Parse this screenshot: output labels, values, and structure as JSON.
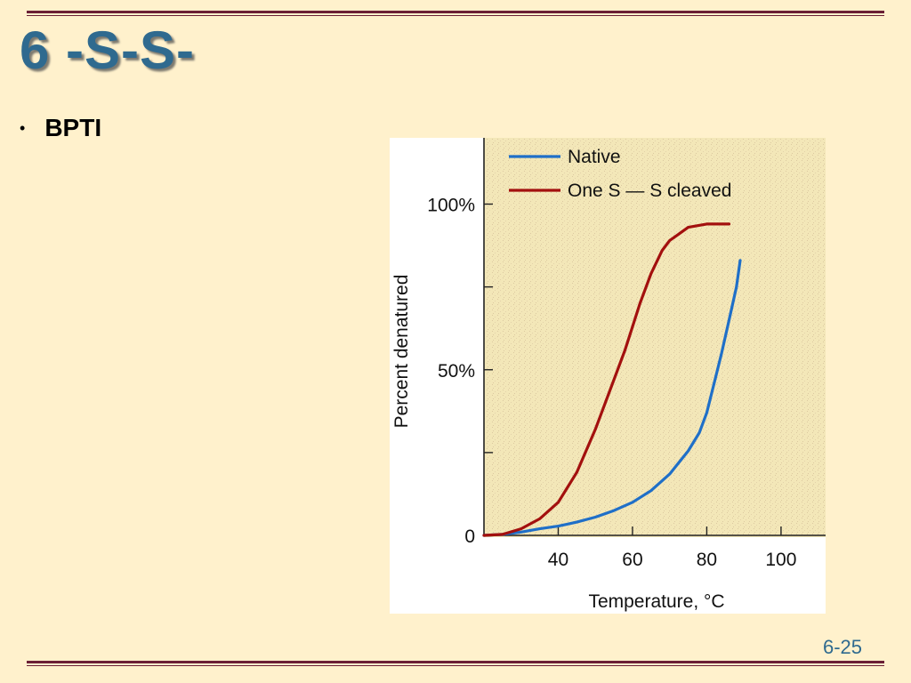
{
  "slide": {
    "title": "6 -S-S-",
    "bullet": "BPTI",
    "bullet_marker": "•",
    "page_number": "6-25"
  },
  "colors": {
    "background": "#FFF1CC",
    "rule": "#6B1F35",
    "title": "#2F6A8F",
    "plot_background": "#F3E7B8"
  },
  "chart_data": {
    "type": "line",
    "xlabel": "Temperature, °C",
    "ylabel": "Percent denatured",
    "xlim": [
      20,
      112
    ],
    "ylim": [
      0,
      120
    ],
    "x_ticks": [
      40,
      60,
      80,
      100
    ],
    "x_tick_labels": [
      "40",
      "60",
      "80",
      "100"
    ],
    "y_ticks": [
      0,
      25,
      50,
      75,
      100
    ],
    "y_tick_labels": [
      "0",
      "",
      "50%",
      "",
      "100%"
    ],
    "grid": false,
    "legend_position": "top-left",
    "series": [
      {
        "name": "Native",
        "color": "#1F6FC8",
        "x": [
          20,
          25,
          30,
          35,
          40,
          45,
          50,
          55,
          60,
          65,
          70,
          75,
          78,
          80,
          82,
          84,
          86,
          88,
          89
        ],
        "y": [
          0,
          0.3,
          1,
          2,
          2.8,
          4,
          5.5,
          7.5,
          10,
          13.5,
          18.5,
          25.5,
          31,
          37,
          46,
          55,
          65,
          75,
          83
        ]
      },
      {
        "name": "One S — S cleaved",
        "color": "#A3100E",
        "x": [
          20,
          25,
          30,
          35,
          40,
          45,
          50,
          55,
          58,
          60,
          62,
          65,
          68,
          70,
          75,
          80,
          85,
          86
        ],
        "y": [
          0,
          0.3,
          2,
          5,
          10,
          19,
          32,
          47,
          56,
          63,
          70,
          79,
          86,
          89,
          93,
          94,
          94,
          94
        ]
      }
    ]
  }
}
